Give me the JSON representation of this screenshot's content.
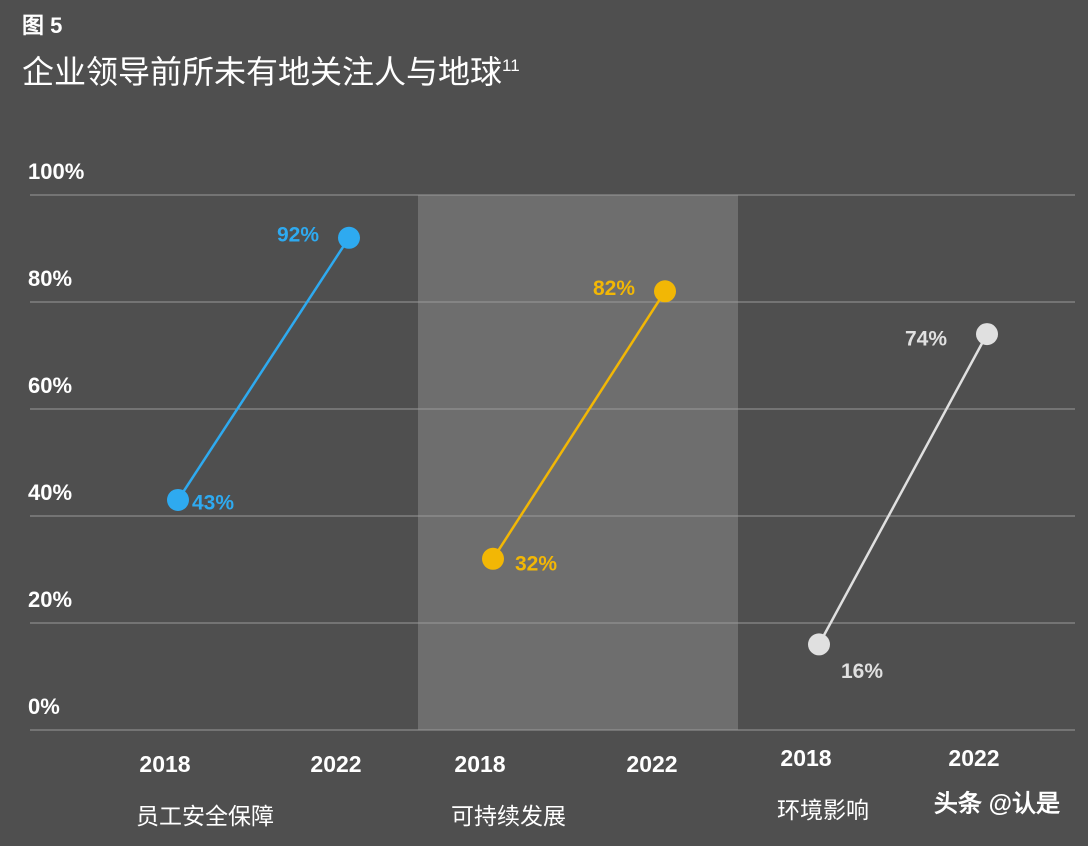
{
  "chart_data": {
    "type": "slope",
    "label": "图 5",
    "title": "企业领导前所未有地关注人与地球",
    "title_note": "11",
    "ylim": [
      0,
      100
    ],
    "yticks": [
      {
        "value": 0,
        "label": "0%"
      },
      {
        "value": 20,
        "label": "20%"
      },
      {
        "value": 40,
        "label": "40%"
      },
      {
        "value": 60,
        "label": "60%"
      },
      {
        "value": 80,
        "label": "80%"
      },
      {
        "value": 100,
        "label": "100%"
      }
    ],
    "grid": true,
    "series": [
      {
        "name": "员工安全保障",
        "color": "#2eaaf0",
        "categories": [
          "2018",
          "2022"
        ],
        "values": [
          43,
          92
        ],
        "value_labels": [
          "43%",
          "92%"
        ]
      },
      {
        "name": "可持续发展",
        "color": "#f2b705",
        "categories": [
          "2018",
          "2022"
        ],
        "values": [
          32,
          82
        ],
        "value_labels": [
          "32%",
          "82%"
        ]
      },
      {
        "name": "环境影响",
        "color": "#e0e0e0",
        "categories": [
          "2018",
          "2022"
        ],
        "values": [
          16,
          74
        ],
        "value_labels": [
          "16%",
          "74%"
        ]
      }
    ],
    "watermark": "头条 @认是"
  }
}
